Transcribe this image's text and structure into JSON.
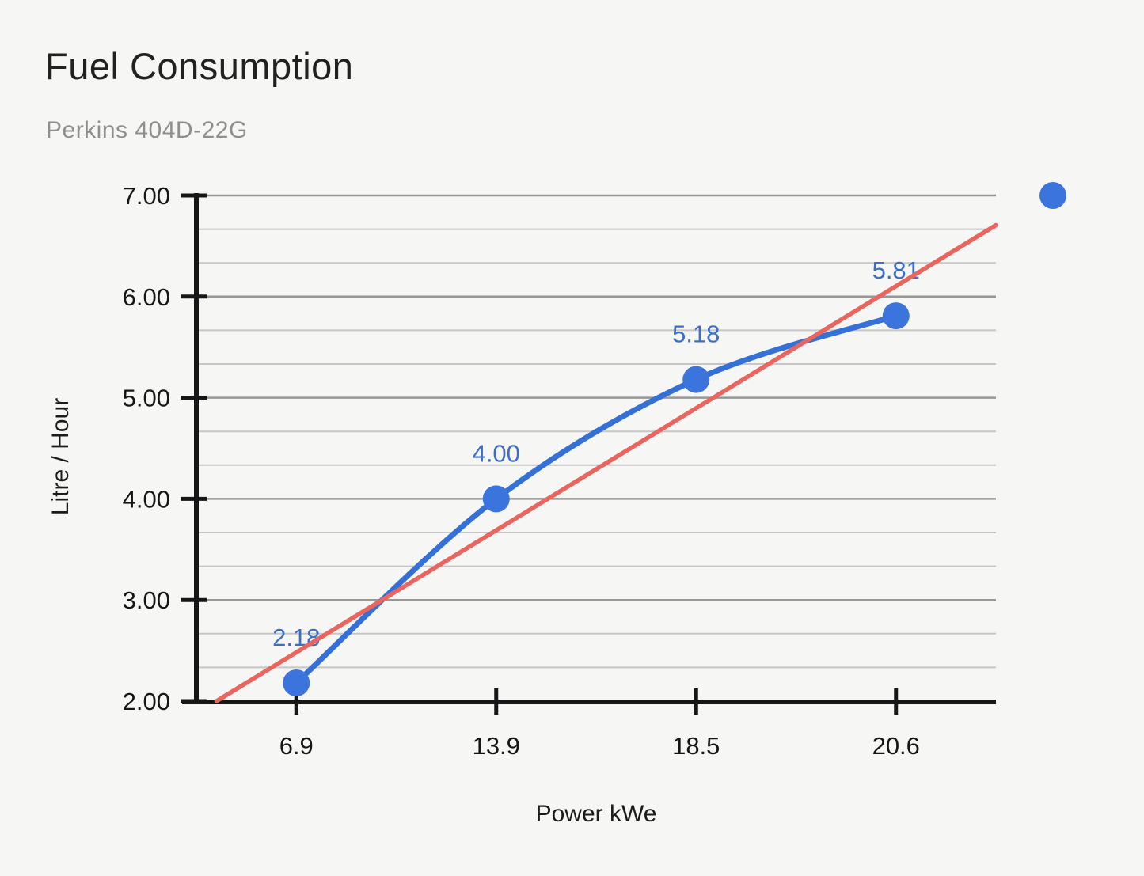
{
  "chart_data": {
    "type": "line",
    "title": "Fuel Consumption",
    "subtitle": "Perkins 404D-22G",
    "xlabel": "Power kWe",
    "ylabel": "Litre / Hour",
    "categories": [
      "6.9",
      "13.9",
      "18.5",
      "20.6"
    ],
    "series": [
      {
        "name": "Litre / Hour",
        "values": [
          2.18,
          4.0,
          5.18,
          5.81
        ],
        "point_labels": [
          "2.18",
          "4.00",
          "5.18",
          "5.81"
        ],
        "color": "#3470d6",
        "point_color": "#3b74dd",
        "label_color": "#3a6ec8",
        "smooth": true,
        "point_radius": 17,
        "line_width": 7
      }
    ],
    "trendline": {
      "type": "linear",
      "fit": "category-index",
      "color": "#e9655f",
      "line_width": 5.5
    },
    "ylim": [
      2,
      7
    ],
    "y_tick_labels": [
      "7.00",
      "6.00",
      "5.00",
      "4.00",
      "3.00",
      "2.00"
    ],
    "y_major_step": 1,
    "y_minor_divisions": 3,
    "grid": true,
    "legend": {
      "position": "right",
      "marker_color": "#3b74dd"
    }
  },
  "colors": {
    "background": "#f6f6f4",
    "axis": "#161616",
    "major_gridline": "#979797",
    "minor_gridline": "#c6c6c6",
    "title_text": "#212121",
    "subtitle_text": "#8f8f8f",
    "tick_text": "#161616",
    "data_label": "#3a6ec8"
  }
}
